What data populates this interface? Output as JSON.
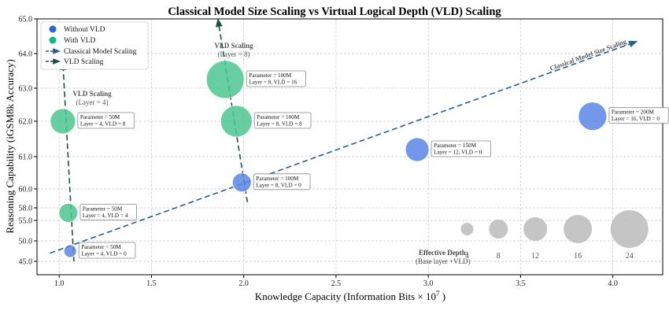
{
  "chart_data": {
    "type": "scatter",
    "title": "Classical Model Size Scaling vs Virtual Logical Depth (VLD) Scaling",
    "xlabel_main": "Knowledge Capacity (Information Bits × 10",
    "xlabel_sup": "7",
    "xlabel_end": " )",
    "ylabel": "Reasoning Capability (iGSM8k Accuracy)",
    "xlim": [
      0.88,
      4.27
    ],
    "y_ticks": [
      "45.0",
      "50.0",
      "55.0",
      "58.0",
      "60.0",
      "61.0",
      "62.0",
      "63.0",
      "64.0",
      "65.0"
    ],
    "x_ticks": [
      "1.0",
      "1.5",
      "2.0",
      "2.5",
      "3.0",
      "3.5",
      "4.0"
    ],
    "x_tick_values": [
      1.0,
      1.5,
      2.0,
      2.5,
      3.0,
      3.5,
      4.0
    ],
    "colors": {
      "without_vld": "#5b86e5",
      "with_vld": "#4cc592",
      "classical_arrow": "#2a5e8c",
      "vld_arrow": "#1f4f45",
      "depth_bubble": "#bbbbbb"
    },
    "legend": [
      "Without VLD",
      "With VLD",
      "Classical Model Scaling",
      "VLD Scaling"
    ],
    "points": [
      {
        "series": "Without VLD",
        "x": 1.06,
        "y_pos": 0.5,
        "size": 8,
        "label1": "Parameter = 50M",
        "label2": "Layer = 4, VLD = 0"
      },
      {
        "series": "Without VLD",
        "x": 1.99,
        "y_pos": 4.2,
        "size": 12,
        "label1": "Parameter = 100M",
        "label2": "Layer = 8, VLD = 0"
      },
      {
        "series": "Without VLD",
        "x": 2.94,
        "y_pos": 5.2,
        "size": 15,
        "label1": "Parameter = 150M",
        "label2": "Layer = 12, VLD = 0"
      },
      {
        "series": "Without VLD",
        "x": 3.89,
        "y_pos": 6.15,
        "size": 18,
        "label1": "Parameter = 200M",
        "label2": "Layer = 16, VLD = 0"
      },
      {
        "series": "With VLD",
        "x": 1.05,
        "y_pos": 2.6,
        "size": 12,
        "label1": "Parameter = 50M",
        "label2": "Layer = 4, VLD = 4"
      },
      {
        "series": "With VLD",
        "x": 1.02,
        "y_pos": 6.0,
        "size": 16,
        "label1": "Parameter = 50M",
        "label2": "Layer = 4, VLD = 8"
      },
      {
        "series": "With VLD",
        "x": 1.96,
        "y_pos": 6.0,
        "size": 20,
        "label1": "Parameter = 100M",
        "label2": "Layer = 8, VLD = 8"
      },
      {
        "series": "With VLD",
        "x": 1.9,
        "y_pos": 7.25,
        "size": 24,
        "label1": "Parameter = 100M",
        "label2": "Layer = 8, VLD = 16"
      }
    ],
    "arrows": [
      {
        "name": "classical",
        "from": [
          0.95,
          0.4
        ],
        "to": [
          4.13,
          8.35
        ],
        "text": "Classical Model Size Scaling"
      },
      {
        "name": "vld-layer4",
        "from": [
          1.08,
          0.0
        ],
        "to": [
          1.02,
          7.75
        ],
        "text1": "VLD Scaling",
        "text2": "(Layer = 4)"
      },
      {
        "name": "vld-layer8",
        "from": [
          2.02,
          3.3
        ],
        "to": [
          1.86,
          9.0
        ],
        "text1": "VLD Scaling",
        "text2": "(Layer = 8)"
      }
    ],
    "depth_legend": {
      "title": "Effective Depth:",
      "subtitle": "(Base layer +VLD)",
      "values": [
        "4",
        "8",
        "12",
        "16",
        "24"
      ],
      "x": [
        3.21,
        3.38,
        3.58,
        3.81,
        4.09
      ],
      "size": [
        8,
        12,
        15,
        18,
        24
      ]
    }
  }
}
